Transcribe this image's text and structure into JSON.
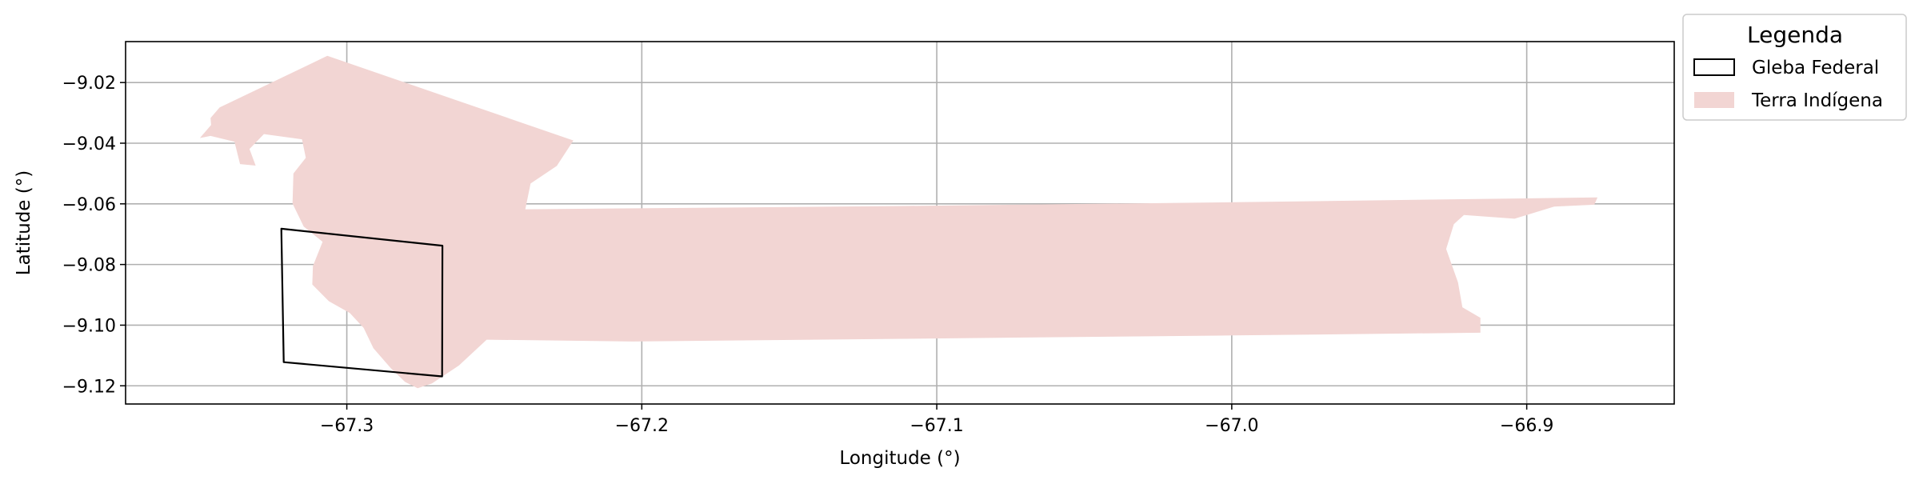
{
  "chart_data": {
    "type": "map",
    "xlabel": "Longitude (°)",
    "ylabel": "Latitude (°)",
    "xlim": [
      -67.375,
      -66.85
    ],
    "ylim": [
      -9.126,
      -9.0065
    ],
    "xticks": [
      -67.3,
      -67.2,
      -67.1,
      -67.0,
      -66.9
    ],
    "xtick_labels": [
      "−67.3",
      "−67.2",
      "−67.1",
      "−67.0",
      "−66.9"
    ],
    "yticks": [
      -9.02,
      -9.04,
      -9.06,
      -9.08,
      -9.1,
      -9.12
    ],
    "ytick_labels": [
      "−9.02",
      "−9.04",
      "−9.06",
      "−9.08",
      "−9.10",
      "−9.12"
    ],
    "grid": true,
    "legend": {
      "title": "Legenda",
      "placement": "outside-top-right",
      "entries": [
        {
          "label": "Gleba Federal",
          "style": "outline",
          "edge_color": "#000000",
          "fill_color": "#ffffff"
        },
        {
          "label": "Terra Indígena",
          "style": "filled",
          "fill_color": "#f2d5d3"
        }
      ]
    },
    "layers": [
      {
        "name": "Terra Indígena",
        "geometry": "polygon",
        "fill_color": "#f2d5d3",
        "coordinates": [
          [
            -67.3066,
            -9.0112
          ],
          [
            -67.2232,
            -9.0391
          ],
          [
            -67.2288,
            -9.0475
          ],
          [
            -67.2377,
            -9.0533
          ],
          [
            -67.2395,
            -9.0618
          ],
          [
            -67.112,
            -9.0607
          ],
          [
            -67.0016,
            -9.0595
          ],
          [
            -66.876,
            -9.0579
          ],
          [
            -66.8771,
            -9.0603
          ],
          [
            -66.8907,
            -9.0609
          ],
          [
            -66.9041,
            -9.0649
          ],
          [
            -66.9213,
            -9.0637
          ],
          [
            -66.9247,
            -9.0667
          ],
          [
            -66.9273,
            -9.0749
          ],
          [
            -66.9251,
            -9.081
          ],
          [
            -66.9233,
            -9.0859
          ],
          [
            -66.9218,
            -9.0941
          ],
          [
            -66.9157,
            -9.0976
          ],
          [
            -66.9157,
            -9.1025
          ],
          [
            -66.9997,
            -9.1034
          ],
          [
            -67.203,
            -9.1054
          ],
          [
            -67.2526,
            -9.1048
          ],
          [
            -67.262,
            -9.1133
          ],
          [
            -67.2711,
            -9.1192
          ],
          [
            -67.276,
            -9.1208
          ],
          [
            -67.2803,
            -9.1187
          ],
          [
            -67.285,
            -9.1143
          ],
          [
            -67.291,
            -9.1076
          ],
          [
            -67.2943,
            -9.1009
          ],
          [
            -67.299,
            -9.096
          ],
          [
            -67.3061,
            -9.0921
          ],
          [
            -67.3117,
            -9.0866
          ],
          [
            -67.3115,
            -9.0805
          ],
          [
            -67.3082,
            -9.0725
          ],
          [
            -67.3146,
            -9.0675
          ],
          [
            -67.3184,
            -9.0599
          ],
          [
            -67.3181,
            -9.05
          ],
          [
            -67.3139,
            -9.0448
          ],
          [
            -67.3152,
            -9.0387
          ],
          [
            -67.3281,
            -9.037
          ],
          [
            -67.333,
            -9.0419
          ],
          [
            -67.3309,
            -9.0474
          ],
          [
            -67.3362,
            -9.0469
          ],
          [
            -67.3381,
            -9.0395
          ],
          [
            -67.3462,
            -9.0376
          ],
          [
            -67.3498,
            -9.0383
          ],
          [
            -67.346,
            -9.034
          ],
          [
            -67.3462,
            -9.0317
          ],
          [
            -67.3431,
            -9.0282
          ],
          [
            -67.3066,
            -9.0112
          ]
        ]
      },
      {
        "name": "Gleba Federal",
        "geometry": "polygon",
        "edge_color": "#000000",
        "fill_color": "none",
        "coordinates": [
          [
            -67.3222,
            -9.0682
          ],
          [
            -67.2676,
            -9.0738
          ],
          [
            -67.2677,
            -9.1169
          ],
          [
            -67.3214,
            -9.1122
          ],
          [
            -67.3222,
            -9.0682
          ]
        ]
      }
    ]
  }
}
